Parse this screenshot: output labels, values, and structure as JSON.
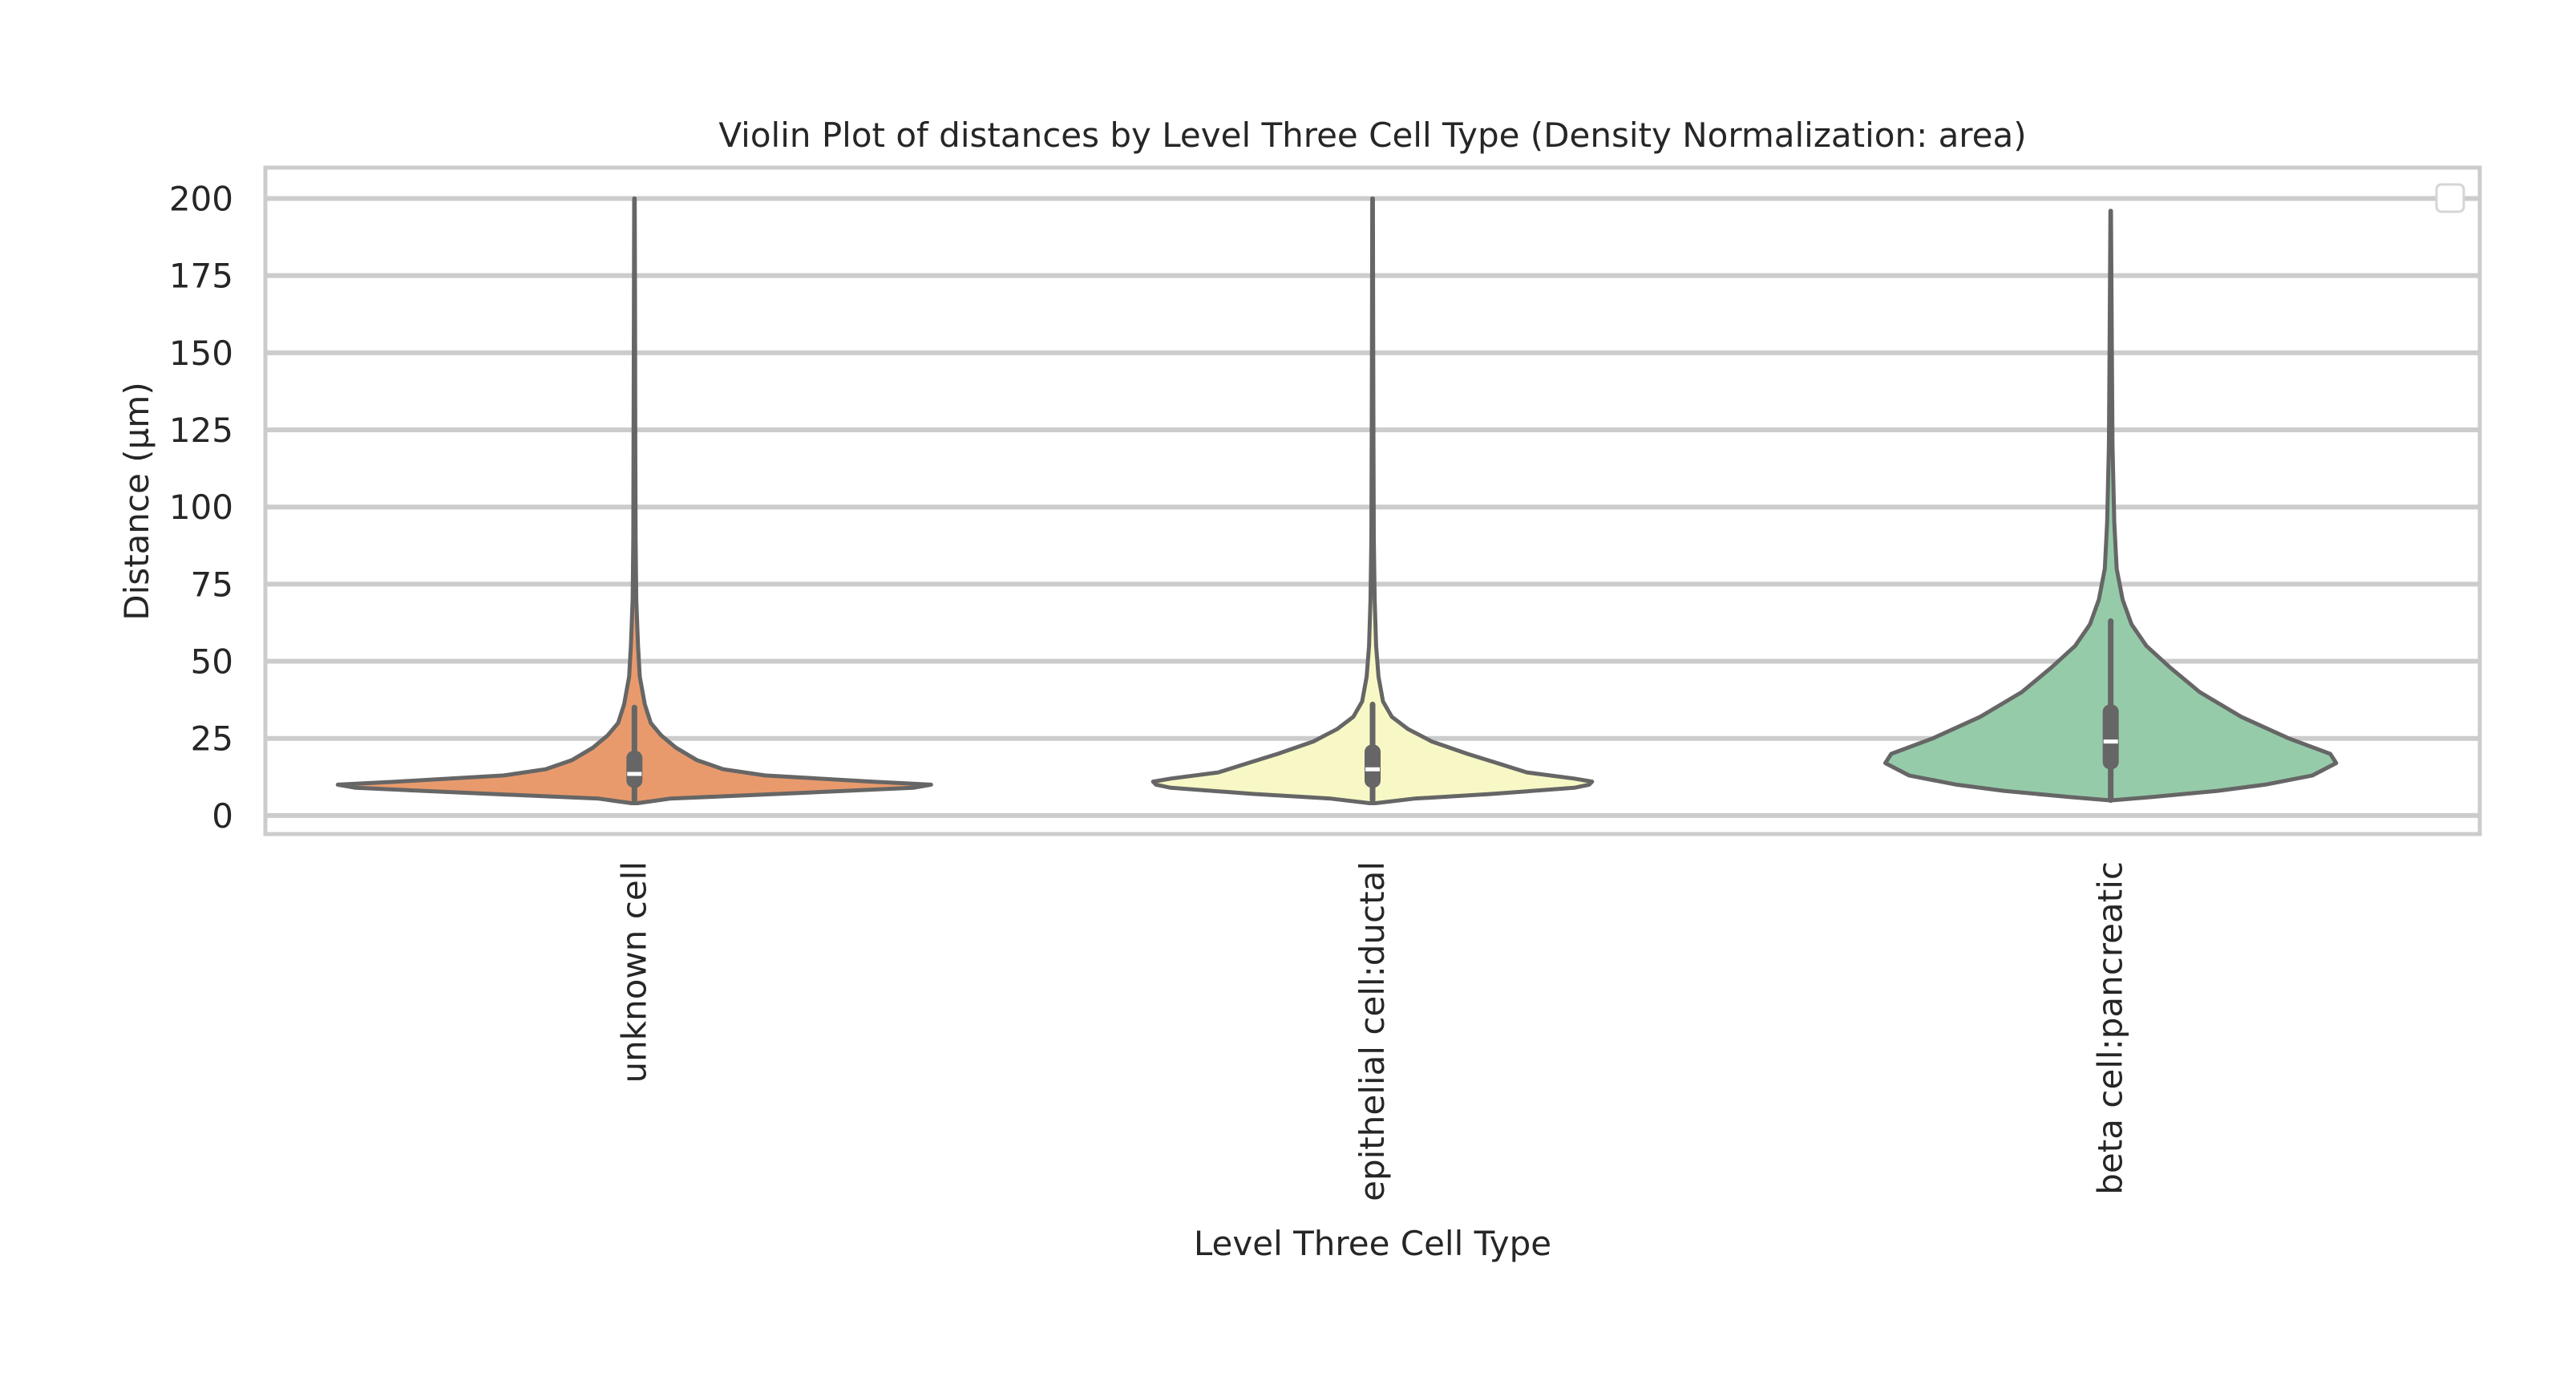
{
  "chart_data": {
    "type": "violin",
    "title": "Violin Plot of distances by Level Three Cell Type (Density Normalization: area)",
    "xlabel": "Level Three Cell Type",
    "ylabel": "Distance (µm)",
    "ylim": [
      -6,
      210
    ],
    "yticks": [
      0,
      25,
      50,
      75,
      100,
      125,
      150,
      175,
      200
    ],
    "grid": true,
    "legend": "top-right",
    "categories": [
      "unknown cell",
      "epithelial cell:ductal",
      "beta cell:pancreatic"
    ],
    "colors": [
      "#e99a6c",
      "#f8f8c6",
      "#96cbaa"
    ],
    "line_color": "#666666",
    "violins": [
      {
        "name": "unknown cell",
        "min": 4,
        "max": 200,
        "q1": 9,
        "median": 13.5,
        "q3": 21,
        "whisker_low": 5,
        "whisker_high": 35,
        "profile": [
          [
            4,
            0.01
          ],
          [
            5.5,
            0.12
          ],
          [
            7,
            0.48
          ],
          [
            9,
            0.94
          ],
          [
            10,
            1.0
          ],
          [
            11,
            0.8
          ],
          [
            13,
            0.44
          ],
          [
            15,
            0.3
          ],
          [
            18,
            0.21
          ],
          [
            22,
            0.14
          ],
          [
            26,
            0.09
          ],
          [
            30,
            0.055
          ],
          [
            36,
            0.035
          ],
          [
            45,
            0.018
          ],
          [
            55,
            0.012
          ],
          [
            70,
            0.006
          ],
          [
            90,
            0.004
          ],
          [
            120,
            0.003
          ],
          [
            160,
            0.002
          ],
          [
            200,
            0.001
          ]
        ]
      },
      {
        "name": "epithelial cell:ductal",
        "min": 4,
        "max": 200,
        "q1": 9,
        "median": 15,
        "q3": 23,
        "whisker_low": 5,
        "whisker_high": 36,
        "profile": [
          [
            4,
            0.01
          ],
          [
            5.5,
            0.14
          ],
          [
            7,
            0.4
          ],
          [
            9,
            0.68
          ],
          [
            10,
            0.73
          ],
          [
            11,
            0.74
          ],
          [
            12,
            0.68
          ],
          [
            14,
            0.52
          ],
          [
            17,
            0.42
          ],
          [
            20,
            0.32
          ],
          [
            24,
            0.2
          ],
          [
            28,
            0.12
          ],
          [
            32,
            0.065
          ],
          [
            37,
            0.035
          ],
          [
            45,
            0.02
          ],
          [
            55,
            0.012
          ],
          [
            70,
            0.007
          ],
          [
            90,
            0.004
          ],
          [
            120,
            0.003
          ],
          [
            160,
            0.002
          ],
          [
            200,
            0.001
          ]
        ]
      },
      {
        "name": "beta cell:pancreatic",
        "min": 5,
        "max": 196,
        "q1": 15,
        "median": 24,
        "q3": 36,
        "whisker_low": 5,
        "whisker_high": 63,
        "profile": [
          [
            5,
            0.01
          ],
          [
            6,
            0.14
          ],
          [
            8,
            0.36
          ],
          [
            10,
            0.52
          ],
          [
            13,
            0.68
          ],
          [
            17,
            0.76
          ],
          [
            20,
            0.74
          ],
          [
            25,
            0.6
          ],
          [
            32,
            0.44
          ],
          [
            40,
            0.3
          ],
          [
            48,
            0.2
          ],
          [
            55,
            0.12
          ],
          [
            62,
            0.07
          ],
          [
            70,
            0.04
          ],
          [
            80,
            0.02
          ],
          [
            95,
            0.012
          ],
          [
            120,
            0.006
          ],
          [
            150,
            0.004
          ],
          [
            196,
            0.001
          ]
        ]
      }
    ]
  }
}
